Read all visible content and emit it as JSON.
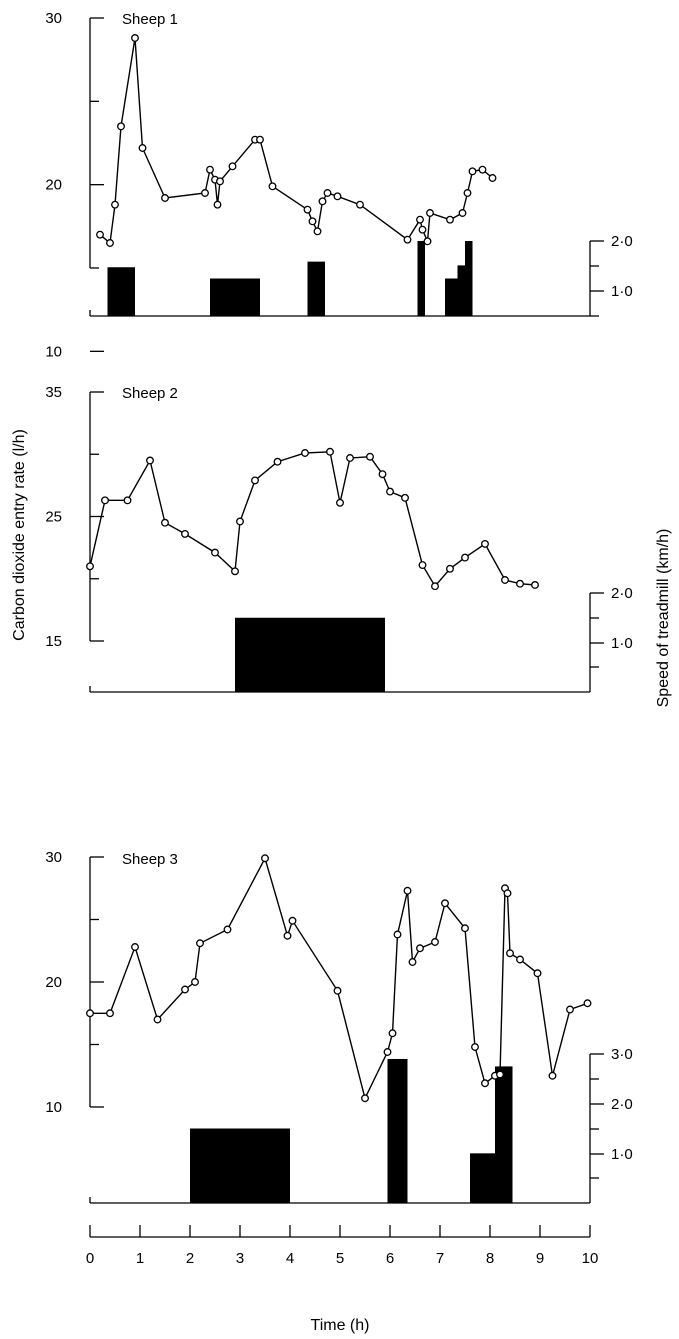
{
  "chart_data": [
    {
      "type": "line",
      "title": "Sheep 1",
      "ylim": [
        15,
        30
      ],
      "yticks": [
        10,
        20,
        30
      ],
      "series": [
        {
          "x": [
            0.2,
            0.4,
            0.5,
            0.62,
            0.9,
            1.05,
            1.5,
            2.3,
            2.4,
            2.5,
            2.55,
            2.6,
            2.85,
            3.3,
            3.4,
            3.65,
            4.35,
            4.45,
            4.55,
            4.65,
            4.75,
            4.95,
            5.4,
            6.35,
            6.6,
            6.65,
            6.75,
            6.8,
            7.2,
            7.45,
            7.55,
            7.65,
            7.85,
            8.05
          ],
          "values": [
            17,
            16.5,
            18.8,
            23.5,
            28.8,
            22.2,
            19.2,
            19.5,
            20.9,
            20.3,
            18.8,
            20.2,
            21.1,
            22.7,
            22.7,
            19.9,
            18.5,
            17.8,
            17.2,
            19,
            19.5,
            19.3,
            18.8,
            16.7,
            17.9,
            17.3,
            16.6,
            18.3,
            17.9,
            18.3,
            19.5,
            20.8,
            20.9,
            20.4
          ]
        }
      ],
      "treadmill": {
        "ylim": [
          0,
          2.0
        ],
        "yticks": [
          "2·0",
          "1·0"
        ],
        "bars": [
          {
            "x0": 0.35,
            "x1": 0.9,
            "value": 1.3
          },
          {
            "x0": 2.4,
            "x1": 3.4,
            "value": 1.0
          },
          {
            "x0": 4.35,
            "x1": 4.7,
            "value": 1.45
          },
          {
            "x0": 6.55,
            "x1": 6.7,
            "value": 2.0
          },
          {
            "x0": 7.1,
            "x1": 7.35,
            "value": 1.0
          },
          {
            "x0": 7.35,
            "x1": 7.5,
            "value": 1.35
          },
          {
            "x0": 7.5,
            "x1": 7.65,
            "value": 2.0
          }
        ]
      }
    },
    {
      "type": "line",
      "title": "Sheep 2",
      "ylim": [
        15,
        35
      ],
      "yticks": [
        15,
        25,
        35
      ],
      "series": [
        {
          "x": [
            0,
            0.3,
            0.75,
            1.2,
            1.5,
            1.9,
            2.5,
            2.9,
            3.0,
            3.3,
            3.75,
            4.3,
            4.8,
            5.0,
            5.2,
            5.6,
            5.85,
            6.0,
            6.3,
            6.65,
            6.9,
            7.2,
            7.5,
            7.9,
            8.3,
            8.6,
            8.9
          ],
          "values": [
            21,
            26.3,
            26.3,
            29.5,
            24.5,
            23.6,
            22.1,
            20.6,
            24.6,
            27.9,
            29.4,
            30.1,
            30.2,
            26.1,
            29.7,
            29.8,
            28.4,
            27.0,
            26.5,
            21.1,
            19.4,
            20.8,
            21.7,
            22.8,
            19.9,
            19.6,
            19.5
          ]
        }
      ],
      "treadmill": {
        "ylim": [
          0,
          2.0
        ],
        "yticks": [
          "2·0",
          "1·0"
        ],
        "bars": [
          {
            "x0": 2.9,
            "x1": 5.9,
            "value": 1.5
          }
        ]
      }
    },
    {
      "type": "line",
      "title": "Sheep 3",
      "ylim": [
        10,
        30
      ],
      "yticks": [
        10,
        20,
        30
      ],
      "series": [
        {
          "x": [
            0,
            0.4,
            0.9,
            1.35,
            1.9,
            2.1,
            2.2,
            2.75,
            3.5,
            3.95,
            4.05,
            4.95,
            5.5,
            5.95,
            6.05,
            6.15,
            6.35,
            6.45,
            6.6,
            6.9,
            7.1,
            7.5,
            7.7,
            7.9,
            8.1,
            8.2,
            8.3,
            8.35,
            8.4,
            8.6,
            8.95,
            9.25,
            9.6,
            9.95
          ],
          "values": [
            17.5,
            17.5,
            22.8,
            17.0,
            19.4,
            20.0,
            23.1,
            24.2,
            29.9,
            23.7,
            24.9,
            19.3,
            10.7,
            14.4,
            15.9,
            23.8,
            27.3,
            21.6,
            22.7,
            23.2,
            26.3,
            24.3,
            14.8,
            11.9,
            12.5,
            12.6,
            27.5,
            27.1,
            22.3,
            21.8,
            20.7,
            12.5,
            17.8,
            18.3
          ]
        }
      ],
      "treadmill": {
        "ylim": [
          0,
          3.0
        ],
        "yticks": [
          "3·0",
          "2·0",
          "1·0"
        ],
        "bars": [
          {
            "x0": 2.0,
            "x1": 4.0,
            "value": 1.5
          },
          {
            "x0": 5.95,
            "x1": 6.35,
            "value": 2.9
          },
          {
            "x0": 7.6,
            "x1": 8.1,
            "value": 1.0
          },
          {
            "x0": 8.1,
            "x1": 8.45,
            "value": 2.75
          }
        ]
      }
    }
  ],
  "axes": {
    "ylabel": "Carbon dioxide entry rate (l/h)",
    "y2label": "Speed of treadmill (km/h)",
    "xlabel": "Time (h)",
    "xticks": [
      "0",
      "1",
      "2",
      "3",
      "4",
      "5",
      "6",
      "7",
      "8",
      "9",
      "10"
    ],
    "xlim": [
      0,
      10
    ]
  }
}
